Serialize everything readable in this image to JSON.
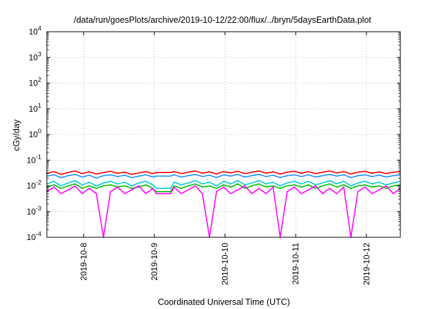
{
  "chart_data": {
    "type": "line",
    "title": "/data/run/goesPlots/archive/2019-10-12/22:00/flux/../bryn/5daysEarthData.plot",
    "xlabel": "Coordinated Universal Time (UTC)",
    "ylabel": "cGy/day",
    "yscale": "log",
    "ylim": [
      0.0001,
      10000
    ],
    "xlim": [
      0.0,
      5.0
    ],
    "x_ticks": [
      {
        "x": 0.52,
        "label": "2019-10-8"
      },
      {
        "x": 1.52,
        "label": "2019-10-9"
      },
      {
        "x": 2.52,
        "label": "2019-10-10"
      },
      {
        "x": 3.52,
        "label": "2019-10-11"
      },
      {
        "x": 4.52,
        "label": "2019-10-12"
      }
    ],
    "y_ticks": [
      {
        "value": 0.0001,
        "base": "10",
        "exp": "-4"
      },
      {
        "value": 0.001,
        "base": "10",
        "exp": "-3"
      },
      {
        "value": 0.01,
        "base": "10",
        "exp": "-2"
      },
      {
        "value": 0.1,
        "base": "10",
        "exp": "-1"
      },
      {
        "value": 1,
        "base": "10",
        "exp": "0"
      },
      {
        "value": 10,
        "base": "10",
        "exp": "1"
      },
      {
        "value": 100,
        "base": "10",
        "exp": "2"
      },
      {
        "value": 1000,
        "base": "10",
        "exp": "3"
      },
      {
        "value": 10000,
        "base": "10",
        "exp": "4"
      }
    ],
    "grid": true,
    "legend": "none",
    "series": [
      {
        "color": "#ff0000",
        "x": [
          0.0,
          0.1,
          0.2,
          0.3,
          0.4,
          0.5,
          0.6,
          0.7,
          0.8,
          0.9,
          1.0,
          1.1,
          1.2,
          1.3,
          1.4,
          1.5,
          1.55,
          1.75,
          1.8,
          1.9,
          2.0,
          2.1,
          2.2,
          2.3,
          2.4,
          2.5,
          2.6,
          2.7,
          2.8,
          2.9,
          3.0,
          3.1,
          3.2,
          3.3,
          3.4,
          3.5,
          3.6,
          3.7,
          3.8,
          3.9,
          4.0,
          4.1,
          4.2,
          4.3,
          4.4,
          4.5,
          4.6,
          4.7,
          4.8,
          4.9,
          5.0
        ],
        "y": [
          0.031,
          0.036,
          0.028,
          0.033,
          0.038,
          0.03,
          0.035,
          0.029,
          0.033,
          0.037,
          0.031,
          0.034,
          0.028,
          0.032,
          0.036,
          0.03,
          0.033,
          0.033,
          0.036,
          0.03,
          0.034,
          0.038,
          0.031,
          0.035,
          0.029,
          0.036,
          0.032,
          0.037,
          0.03,
          0.034,
          0.038,
          0.031,
          0.035,
          0.029,
          0.034,
          0.037,
          0.031,
          0.036,
          0.03,
          0.034,
          0.038,
          0.032,
          0.036,
          0.029,
          0.034,
          0.037,
          0.031,
          0.035,
          0.03,
          0.034,
          0.036
        ]
      },
      {
        "color": "#1e90ff",
        "x": [
          0.0,
          0.1,
          0.2,
          0.3,
          0.4,
          0.5,
          0.6,
          0.7,
          0.8,
          0.9,
          1.0,
          1.1,
          1.2,
          1.3,
          1.4,
          1.5,
          1.55,
          1.75,
          1.8,
          1.9,
          2.0,
          2.1,
          2.2,
          2.3,
          2.4,
          2.5,
          2.6,
          2.7,
          2.8,
          2.9,
          3.0,
          3.1,
          3.2,
          3.3,
          3.4,
          3.5,
          3.6,
          3.7,
          3.8,
          3.9,
          4.0,
          4.1,
          4.2,
          4.3,
          4.4,
          4.5,
          4.6,
          4.7,
          4.8,
          4.9,
          5.0
        ],
        "y": [
          0.024,
          0.027,
          0.021,
          0.025,
          0.028,
          0.022,
          0.026,
          0.02,
          0.025,
          0.027,
          0.023,
          0.026,
          0.021,
          0.024,
          0.027,
          0.022,
          0.024,
          0.024,
          0.027,
          0.022,
          0.025,
          0.028,
          0.023,
          0.026,
          0.021,
          0.027,
          0.024,
          0.028,
          0.022,
          0.025,
          0.028,
          0.023,
          0.026,
          0.021,
          0.025,
          0.027,
          0.023,
          0.027,
          0.022,
          0.025,
          0.028,
          0.024,
          0.027,
          0.021,
          0.025,
          0.027,
          0.023,
          0.026,
          0.022,
          0.025,
          0.027
        ]
      },
      {
        "color": "#00ced1",
        "x": [
          0.0,
          0.1,
          0.2,
          0.3,
          0.4,
          0.5,
          0.6,
          0.7,
          0.8,
          0.9,
          1.0,
          1.1,
          1.2,
          1.3,
          1.4,
          1.5,
          1.55,
          1.75,
          1.8,
          1.9,
          2.0,
          2.1,
          2.2,
          2.3,
          2.4,
          2.5,
          2.6,
          2.7,
          2.8,
          2.9,
          3.0,
          3.1,
          3.2,
          3.3,
          3.4,
          3.5,
          3.6,
          3.7,
          3.8,
          3.9,
          4.0,
          4.1,
          4.2,
          4.3,
          4.4,
          4.5,
          4.6,
          4.7,
          4.8,
          4.9,
          5.0
        ],
        "y": [
          0.012,
          0.015,
          0.01,
          0.013,
          0.016,
          0.011,
          0.014,
          0.01,
          0.013,
          0.015,
          0.012,
          0.014,
          0.01,
          0.013,
          0.015,
          0.011,
          0.008,
          0.008,
          0.014,
          0.011,
          0.013,
          0.016,
          0.012,
          0.014,
          0.01,
          0.015,
          0.012,
          0.016,
          0.011,
          0.013,
          0.016,
          0.012,
          0.014,
          0.01,
          0.013,
          0.015,
          0.012,
          0.015,
          0.011,
          0.013,
          0.016,
          0.012,
          0.015,
          0.01,
          0.013,
          0.015,
          0.012,
          0.014,
          0.011,
          0.013,
          0.015
        ]
      },
      {
        "color": "#00c000",
        "x": [
          0.0,
          0.1,
          0.2,
          0.3,
          0.4,
          0.5,
          0.6,
          0.7,
          0.8,
          0.9,
          1.0,
          1.1,
          1.2,
          1.3,
          1.4,
          1.5,
          1.55,
          1.75,
          1.8,
          1.9,
          2.0,
          2.1,
          2.2,
          2.3,
          2.4,
          2.5,
          2.6,
          2.7,
          2.8,
          2.9,
          3.0,
          3.1,
          3.2,
          3.3,
          3.4,
          3.5,
          3.6,
          3.7,
          3.8,
          3.9,
          4.0,
          4.1,
          4.2,
          4.3,
          4.4,
          4.5,
          4.6,
          4.7,
          4.8,
          4.9,
          5.0
        ],
        "y": [
          0.009,
          0.011,
          0.008,
          0.01,
          0.012,
          0.008,
          0.01,
          0.008,
          0.01,
          0.011,
          0.009,
          0.01,
          0.008,
          0.009,
          0.011,
          0.008,
          0.006,
          0.006,
          0.01,
          0.008,
          0.01,
          0.012,
          0.009,
          0.01,
          0.008,
          0.011,
          0.009,
          0.012,
          0.008,
          0.01,
          0.012,
          0.009,
          0.01,
          0.008,
          0.01,
          0.011,
          0.009,
          0.011,
          0.008,
          0.01,
          0.012,
          0.009,
          0.011,
          0.008,
          0.01,
          0.011,
          0.009,
          0.01,
          0.008,
          0.01,
          0.011
        ]
      },
      {
        "color": "#ff00ff",
        "x": [
          0.0,
          0.1,
          0.2,
          0.3,
          0.4,
          0.5,
          0.6,
          0.7,
          0.8,
          0.9,
          1.0,
          1.1,
          1.2,
          1.3,
          1.4,
          1.5,
          1.55,
          1.75,
          1.8,
          1.9,
          2.0,
          2.1,
          2.2,
          2.3,
          2.4,
          2.5,
          2.6,
          2.7,
          2.8,
          2.9,
          3.0,
          3.1,
          3.2,
          3.3,
          3.4,
          3.5,
          3.6,
          3.7,
          3.8,
          3.9,
          4.0,
          4.1,
          4.2,
          4.3,
          4.4,
          4.5,
          4.6,
          4.7,
          4.8,
          4.9,
          5.0
        ],
        "y": [
          0.006,
          0.009,
          0.005,
          0.007,
          0.01,
          0.005,
          0.008,
          0.005,
          0.0001,
          0.006,
          0.009,
          0.005,
          0.007,
          0.01,
          0.005,
          0.008,
          0.005,
          0.005,
          0.009,
          0.005,
          0.007,
          0.01,
          0.005,
          0.0001,
          0.006,
          0.009,
          0.005,
          0.007,
          0.01,
          0.005,
          0.008,
          0.005,
          0.009,
          0.0001,
          0.006,
          0.009,
          0.005,
          0.007,
          0.01,
          0.005,
          0.008,
          0.005,
          0.009,
          0.0001,
          0.006,
          0.009,
          0.005,
          0.007,
          0.01,
          0.005,
          0.008
        ]
      }
    ]
  }
}
